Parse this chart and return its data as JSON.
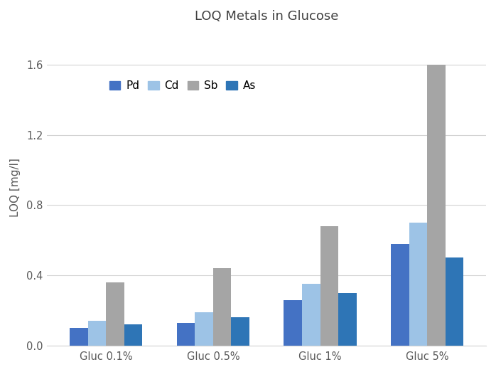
{
  "title": "LOQ Metals in Glucose",
  "categories": [
    "Gluc 0.1%",
    "Gluc 0.5%",
    "Gluc 1%",
    "Gluc 5%"
  ],
  "series": [
    {
      "label": "Pd",
      "color": "#4472C4",
      "values": [
        0.1,
        0.13,
        0.26,
        0.58
      ]
    },
    {
      "label": "Cd",
      "color": "#9DC3E6",
      "values": [
        0.14,
        0.19,
        0.35,
        0.7
      ]
    },
    {
      "label": "Sb",
      "color": "#A5A5A5",
      "values": [
        0.36,
        0.44,
        0.68,
        1.6
      ]
    },
    {
      "label": "As",
      "color": "#2E75B6",
      "values": [
        0.12,
        0.16,
        0.3,
        0.5
      ]
    }
  ],
  "ylabel": "LOQ [mg/l]",
  "ylim": [
    0.0,
    1.8
  ],
  "yticks": [
    0.0,
    0.4,
    0.8,
    1.2,
    1.6
  ],
  "grid_color": "#D3D3D3",
  "background_color": "#FFFFFF",
  "bar_width": 0.17,
  "title_fontsize": 13,
  "axis_fontsize": 11,
  "tick_fontsize": 10.5
}
